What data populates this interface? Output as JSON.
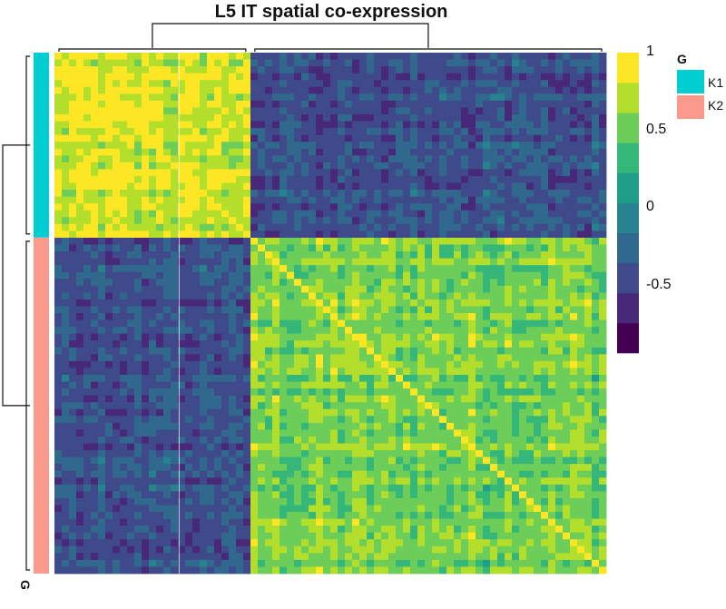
{
  "chart_data": {
    "type": "heatmap",
    "title": "L5 IT spatial co-expression",
    "row_annotation_label": "G",
    "groups": [
      {
        "name": "K1",
        "color": "#00CED1",
        "fraction": 0.355
      },
      {
        "name": "K2",
        "color": "#FA9A8C",
        "fraction": 0.645
      }
    ],
    "block_means": {
      "K1_K1": 0.75,
      "K1_K2": -0.45,
      "K2_K2": 0.55
    },
    "colorbar": {
      "range": [
        -1,
        1
      ],
      "ticks": [
        {
          "value": 1,
          "label": "1"
        },
        {
          "value": 0.5,
          "label": "0.5"
        },
        {
          "value": 0,
          "label": "0"
        },
        {
          "value": -0.5,
          "label": "-0.5"
        }
      ],
      "colors": [
        "#440154",
        "#482878",
        "#3E4A89",
        "#31688E",
        "#26828E",
        "#1F9E89",
        "#35B779",
        "#6DCD59",
        "#B4DE2C",
        "#FDE725"
      ]
    },
    "legend": {
      "title": "G",
      "entries": [
        {
          "label": "K1",
          "color": "#00CED1"
        },
        {
          "label": "K2",
          "color": "#FA9A8C"
        }
      ]
    }
  }
}
